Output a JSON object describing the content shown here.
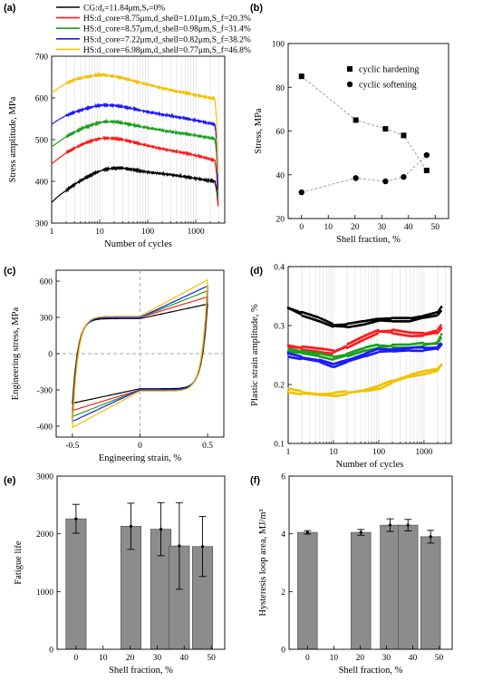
{
  "chart_data": [
    {
      "panel": "(a)",
      "type": "line",
      "xlabel": "Number of cycles",
      "ylabel": "Stress amplitude, MPa",
      "xscale": "log",
      "xlim": [
        1,
        4000
      ],
      "ylim": [
        300,
        700
      ],
      "xticks": [
        1,
        10,
        100,
        1000
      ],
      "xtick_labels": [
        "1",
        "10",
        "100",
        "1000"
      ],
      "yticks": [
        300,
        400,
        500,
        600,
        700
      ],
      "legend_position": "top-left",
      "series": [
        {
          "name": "CG:dₐ=11.84μm,Sₑ=0%",
          "color": "#000000",
          "x": [
            1,
            1.5,
            2,
            3,
            5,
            8,
            12,
            20,
            30,
            50,
            80,
            150,
            300,
            600,
            1000,
            1800,
            2500,
            2700,
            2900
          ],
          "y": [
            350,
            368,
            378,
            393,
            408,
            420,
            428,
            432,
            432,
            428,
            424,
            420,
            416,
            411,
            407,
            402,
            400,
            380,
            345
          ]
        },
        {
          "name": "HS:d_core=8.75μm,d_shell=1.01μm,S_f=20.3%",
          "color": "#ff1a1a",
          "x": [
            1,
            1.5,
            2,
            3,
            5,
            8,
            12,
            20,
            30,
            50,
            80,
            150,
            300,
            600,
            1000,
            1800,
            2500,
            2700,
            2900
          ],
          "y": [
            442,
            458,
            468,
            480,
            492,
            500,
            504,
            503,
            500,
            494,
            488,
            481,
            474,
            468,
            462,
            455,
            450,
            420,
            340
          ]
        },
        {
          "name": "HS:d_core=8.57μm,d_shell=0.98μm,S_f=31.4%",
          "color": "#1aa01a",
          "x": [
            1,
            1.5,
            2,
            3,
            5,
            8,
            12,
            20,
            30,
            50,
            80,
            150,
            300,
            600,
            1000,
            1800,
            2500,
            2700,
            2900
          ],
          "y": [
            483,
            497,
            507,
            518,
            530,
            538,
            543,
            543,
            540,
            535,
            530,
            525,
            519,
            514,
            510,
            505,
            502,
            470,
            360
          ]
        },
        {
          "name": "HS:d_core=7.22μm,d_shell=0.82μm,S_f=38.2%",
          "color": "#1a1aff",
          "x": [
            1,
            1.5,
            2,
            3,
            5,
            8,
            12,
            20,
            30,
            50,
            80,
            150,
            300,
            600,
            1000,
            1800,
            2500,
            2700,
            2900
          ],
          "y": [
            537,
            550,
            558,
            566,
            574,
            580,
            583,
            582,
            579,
            574,
            569,
            563,
            557,
            551,
            546,
            540,
            537,
            500,
            380
          ]
        },
        {
          "name": "HS:d_core=6.98μm,d_shell=0.77μm,S_f=46.8%",
          "color": "#f2c200",
          "x": [
            1,
            1.5,
            2,
            3,
            5,
            8,
            12,
            20,
            30,
            50,
            80,
            150,
            300,
            600,
            1000,
            1800,
            2500,
            2700,
            2900
          ],
          "y": [
            612,
            626,
            635,
            644,
            650,
            654,
            655,
            652,
            648,
            641,
            635,
            627,
            619,
            612,
            607,
            601,
            598,
            550,
            420
          ]
        }
      ]
    },
    {
      "panel": "(b)",
      "type": "scatter",
      "xlabel": "Shell fraction, %",
      "ylabel": "Stress, MPa",
      "xlim": [
        -5,
        55
      ],
      "ylim": [
        20,
        100
      ],
      "xticks": [
        0,
        10,
        20,
        30,
        40,
        50
      ],
      "yticks": [
        20,
        40,
        60,
        80,
        100
      ],
      "legend_position": "top-right",
      "series": [
        {
          "name": "cyclic hardening",
          "marker": "square",
          "x": [
            0,
            20.3,
            31.4,
            38.2,
            46.8
          ],
          "y": [
            85,
            65,
            61,
            58,
            42
          ]
        },
        {
          "name": "cyclic softening",
          "marker": "circle",
          "x": [
            0,
            20.3,
            31.4,
            38.2,
            46.8
          ],
          "y": [
            32,
            38.5,
            37,
            39,
            49
          ]
        }
      ]
    },
    {
      "panel": "(c)",
      "type": "line",
      "xlabel": "Engineering strain, %",
      "ylabel": "Engineering stress, MPa",
      "xlim": [
        -0.62,
        0.62
      ],
      "ylim": [
        -690,
        690
      ],
      "xticks": [
        -0.5,
        0,
        0.5
      ],
      "xtick_labels": [
        "-0.5",
        "0",
        "0.5"
      ],
      "yticks": [
        -600,
        -300,
        0,
        300,
        600
      ],
      "loops": [
        {
          "color": "#000000",
          "amp": 410,
          "intercept": 290
        },
        {
          "color": "#ff1a1a",
          "amp": 470,
          "intercept": 300
        },
        {
          "color": "#1aa01a",
          "amp": 520,
          "intercept": 300
        },
        {
          "color": "#1a1aff",
          "amp": 560,
          "intercept": 300
        },
        {
          "color": "#f2c200",
          "amp": 610,
          "intercept": 310
        }
      ]
    },
    {
      "panel": "(d)",
      "type": "scatter",
      "xlabel": "Number of cycles",
      "ylabel": "Plastic strain amplitude, %",
      "xscale": "log",
      "xlim": [
        1,
        4000
      ],
      "ylim": [
        0.1,
        0.4
      ],
      "xticks": [
        1,
        10,
        100,
        1000
      ],
      "xtick_labels": [
        "1",
        "10",
        "100",
        "1000"
      ],
      "yticks": [
        0.1,
        0.2,
        0.3,
        0.4
      ],
      "series": [
        {
          "color": "#000000",
          "x": [
            1,
            2,
            5,
            10,
            20,
            50,
            100,
            200,
            500,
            1000,
            2000,
            2500
          ],
          "y": [
            0.33,
            0.32,
            0.31,
            0.3,
            0.3,
            0.305,
            0.31,
            0.31,
            0.31,
            0.315,
            0.32,
            0.33
          ]
        },
        {
          "color": "#ff1a1a",
          "x": [
            1,
            2,
            5,
            10,
            20,
            50,
            100,
            200,
            500,
            1000,
            2000,
            2500
          ],
          "y": [
            0.265,
            0.262,
            0.258,
            0.255,
            0.265,
            0.28,
            0.29,
            0.29,
            0.285,
            0.285,
            0.29,
            0.3
          ]
        },
        {
          "color": "#1aa01a",
          "x": [
            1,
            2,
            5,
            10,
            20,
            50,
            100,
            200,
            500,
            1000,
            2000,
            2500
          ],
          "y": [
            0.258,
            0.255,
            0.25,
            0.245,
            0.25,
            0.26,
            0.265,
            0.265,
            0.265,
            0.268,
            0.27,
            0.285
          ]
        },
        {
          "color": "#1a1aff",
          "x": [
            1,
            2,
            5,
            10,
            20,
            50,
            100,
            200,
            500,
            1000,
            2000,
            2500
          ],
          "y": [
            0.25,
            0.245,
            0.24,
            0.232,
            0.24,
            0.25,
            0.258,
            0.258,
            0.26,
            0.26,
            0.262,
            0.27
          ]
        },
        {
          "color": "#f2c200",
          "x": [
            1,
            2,
            5,
            10,
            20,
            50,
            100,
            200,
            500,
            1000,
            2000,
            2500
          ],
          "y": [
            0.19,
            0.186,
            0.183,
            0.183,
            0.186,
            0.19,
            0.195,
            0.205,
            0.215,
            0.22,
            0.225,
            0.235
          ]
        }
      ]
    },
    {
      "panel": "(e)",
      "type": "bar",
      "xlabel": "Shell fraction, %",
      "ylabel": "Fatigue life",
      "xlim": [
        -7,
        55
      ],
      "ylim": [
        0,
        3000
      ],
      "xticks": [
        0,
        10,
        20,
        30,
        40,
        50
      ],
      "yticks": [
        0,
        1000,
        2000,
        3000
      ],
      "x": [
        0,
        20.3,
        31.4,
        38.2,
        46.8
      ],
      "values": [
        2260,
        2130,
        2080,
        1790,
        1780
      ],
      "errors": [
        250,
        400,
        460,
        750,
        520
      ]
    },
    {
      "panel": "(f)",
      "type": "bar",
      "xlabel": "Shell fraction, %",
      "ylabel": "Hysteresis loop area, MJ/m³",
      "xlim": [
        -7,
        55
      ],
      "ylim": [
        0,
        6
      ],
      "xticks": [
        0,
        10,
        20,
        30,
        40,
        50
      ],
      "yticks": [
        0,
        2,
        4,
        6
      ],
      "x": [
        0,
        20.3,
        31.4,
        38.2,
        46.8
      ],
      "values": [
        4.05,
        4.05,
        4.3,
        4.3,
        3.9
      ],
      "errors": [
        0.06,
        0.1,
        0.22,
        0.2,
        0.22
      ]
    }
  ]
}
